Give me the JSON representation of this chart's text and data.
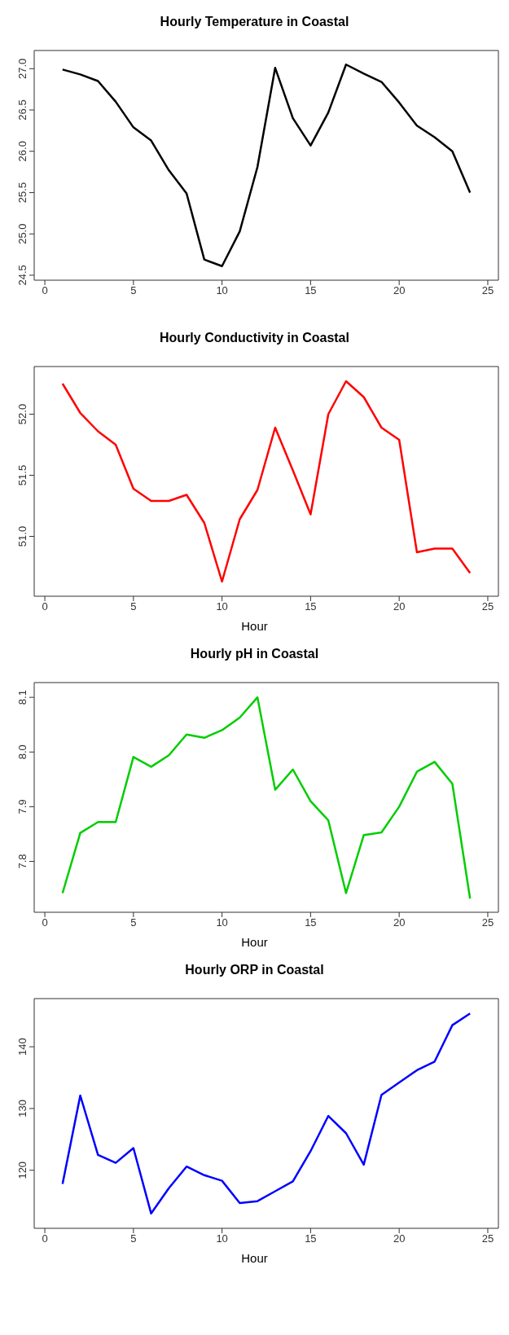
{
  "chart_data": [
    {
      "type": "line",
      "title": "Hourly Temperature in Coastal",
      "x": [
        1,
        2,
        3,
        4,
        5,
        6,
        7,
        8,
        9,
        10,
        11,
        12,
        13,
        14,
        15,
        16,
        17,
        18,
        19,
        20,
        21,
        22,
        23,
        24
      ],
      "series": [
        {
          "color": "#000000",
          "values": [
            26.99,
            26.93,
            26.85,
            26.6,
            26.29,
            26.13,
            25.77,
            25.49,
            24.69,
            24.61,
            25.03,
            25.81,
            27.01,
            26.4,
            26.07,
            26.47,
            27.05,
            26.94,
            26.84,
            26.59,
            26.31,
            26.17,
            26.0,
            25.5
          ]
        }
      ],
      "xlim": [
        -0.6,
        25.6
      ],
      "xticks": [
        0,
        5,
        10,
        15,
        20,
        25
      ],
      "ylim": [
        24.44,
        27.22
      ],
      "yticks": [
        24.5,
        {
          "value": 25,
          "label": "25.0"
        },
        25.5,
        {
          "value": 26,
          "label": "26.0"
        },
        26.5,
        {
          "value": 27,
          "label": "27.0"
        }
      ]
    },
    {
      "type": "line",
      "title": "Hourly Conductivity in Coastal",
      "xlabel": "Hour",
      "x": [
        1,
        2,
        3,
        4,
        5,
        6,
        7,
        8,
        9,
        10,
        11,
        12,
        13,
        14,
        15,
        16,
        17,
        18,
        19,
        20,
        21,
        22,
        23,
        24
      ],
      "series": [
        {
          "color": "#ff0000",
          "values": [
            52.25,
            52.01,
            51.86,
            51.75,
            51.39,
            51.29,
            51.29,
            51.34,
            51.11,
            50.63,
            51.14,
            51.38,
            51.89,
            51.54,
            51.18,
            52.0,
            52.27,
            52.14,
            51.89,
            51.79,
            50.87,
            50.9,
            50.9,
            50.7
          ]
        }
      ],
      "xlim": [
        -0.6,
        25.6
      ],
      "xticks": [
        0,
        5,
        10,
        15,
        20,
        25
      ],
      "ylim": [
        50.51,
        52.39
      ],
      "yticks": [
        {
          "value": 51,
          "label": "51.0"
        },
        51.5,
        {
          "value": 52,
          "label": "52.0"
        }
      ]
    },
    {
      "type": "line",
      "title": "Hourly pH in Coastal",
      "xlabel": "Hour",
      "x": [
        1,
        2,
        3,
        4,
        5,
        6,
        7,
        8,
        9,
        10,
        11,
        12,
        13,
        14,
        15,
        16,
        17,
        18,
        19,
        20,
        21,
        22,
        23,
        24
      ],
      "series": [
        {
          "color": "#00cd00",
          "values": [
            7.742,
            7.852,
            7.872,
            7.872,
            7.991,
            7.973,
            7.994,
            8.032,
            8.026,
            8.04,
            8.063,
            8.1,
            7.931,
            7.968,
            7.91,
            7.875,
            7.742,
            7.848,
            7.853,
            7.9,
            7.964,
            7.982,
            7.942,
            7.732
          ]
        }
      ],
      "xlim": [
        -0.6,
        25.6
      ],
      "xticks": [
        0,
        5,
        10,
        15,
        20,
        25
      ],
      "ylim": [
        7.707,
        8.127
      ],
      "yticks": [
        7.8,
        7.9,
        {
          "value": 8,
          "label": "8.0"
        },
        8.1
      ]
    },
    {
      "type": "line",
      "title": "Hourly ORP in Coastal",
      "xlabel": "Hour",
      "x": [
        1,
        2,
        3,
        4,
        5,
        6,
        7,
        8,
        9,
        10,
        11,
        12,
        13,
        14,
        15,
        16,
        17,
        18,
        19,
        20,
        21,
        22,
        23,
        24
      ],
      "series": [
        {
          "color": "#0000ff",
          "values": [
            117.8,
            132.1,
            122.5,
            121.2,
            123.6,
            113.0,
            117.1,
            120.6,
            119.2,
            118.3,
            114.7,
            115.0,
            116.6,
            118.2,
            123.1,
            128.8,
            126.0,
            120.9,
            132.2,
            134.2,
            136.2,
            137.6,
            143.5,
            145.4
          ]
        }
      ],
      "xlim": [
        -0.6,
        25.6
      ],
      "xticks": [
        0,
        5,
        10,
        15,
        20,
        25
      ],
      "ylim": [
        110.6,
        147.8
      ],
      "yticks": [
        120,
        130,
        140
      ]
    }
  ]
}
